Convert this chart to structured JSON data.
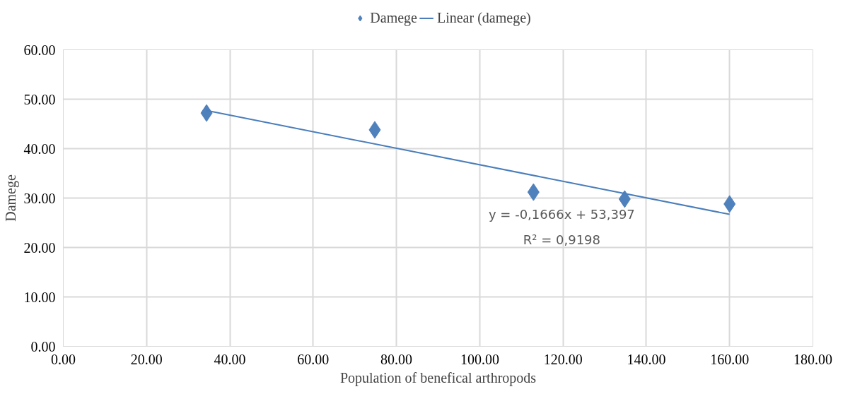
{
  "chart_data": {
    "type": "scatter",
    "xlabel": "Population of benefical arthropods",
    "ylabel": "Damege",
    "series": [
      {
        "name": "Damege",
        "marker": "diamond",
        "color": "#4f81bd",
        "x": [
          34.4,
          74.8,
          112.9,
          134.8,
          160.0
        ],
        "values": [
          47.2,
          43.8,
          31.2,
          29.8,
          28.8
        ]
      },
      {
        "name": "Linear (damege)",
        "type": "line",
        "marker": "none",
        "line_style": "solid",
        "color": "#4a7ebb",
        "x": [
          34.4,
          160.0
        ],
        "values": [
          47.7,
          26.7
        ]
      }
    ],
    "annotations": [
      "y = -0,1666x + 53,397",
      "R² = 0,9198"
    ],
    "xlim": [
      0,
      180
    ],
    "ylim": [
      0,
      60
    ],
    "xticks": [
      {
        "value": 0,
        "label": "0.00"
      },
      {
        "value": 20,
        "label": "20.00"
      },
      {
        "value": 40,
        "label": "40.00"
      },
      {
        "value": 60,
        "label": "60.00"
      },
      {
        "value": 80,
        "label": "80.00"
      },
      {
        "value": 100,
        "label": "100.00"
      },
      {
        "value": 120,
        "label": "120.00"
      },
      {
        "value": 140,
        "label": "140.00"
      },
      {
        "value": 160,
        "label": "160.00"
      },
      {
        "value": 180,
        "label": "180.00"
      }
    ],
    "yticks": [
      {
        "value": 0,
        "label": "0.00"
      },
      {
        "value": 10,
        "label": "10.00"
      },
      {
        "value": 20,
        "label": "20.00"
      },
      {
        "value": 30,
        "label": "30.00"
      },
      {
        "value": 40,
        "label": "40.00"
      },
      {
        "value": 50,
        "label": "50.00"
      },
      {
        "value": 60,
        "label": "60.00"
      }
    ],
    "grid": true,
    "legend": "top"
  }
}
